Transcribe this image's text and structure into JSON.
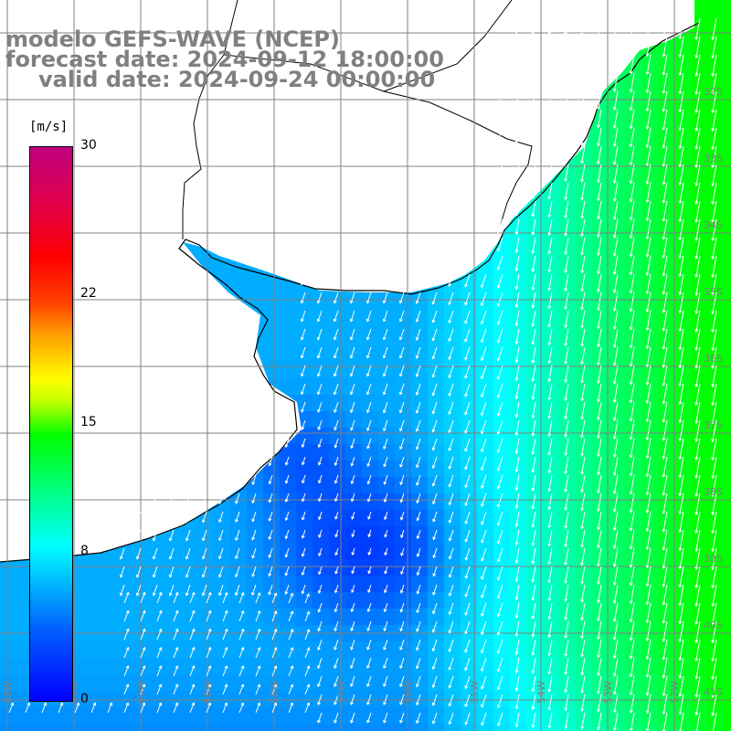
{
  "header": {
    "model": "modelo GEFS-WAVE (NCEP)",
    "forecast_date": "forecast date: 2024-09-12 18:00:00",
    "valid_date": "valid date: 2024-09-24 00:00:00"
  },
  "legend": {
    "units": "[m/s]",
    "ticks": [
      {
        "value": 30,
        "label": "30"
      },
      {
        "value": 22,
        "label": "22"
      },
      {
        "value": 15,
        "label": "15"
      },
      {
        "value": 8,
        "label": "8"
      },
      {
        "value": 0,
        "label": "0"
      }
    ],
    "min": 0,
    "max": 30
  },
  "map": {
    "lat_labels": [
      "32S",
      "33S",
      "34S",
      "35S",
      "36S",
      "37S",
      "38S",
      "39S",
      "40S",
      "41S",
      "42S"
    ],
    "lon_labels": [
      "62W",
      "61W",
      "60W",
      "59W",
      "58W",
      "57W",
      "56W",
      "55W",
      "54W",
      "53W",
      "52W"
    ],
    "land_color": "#ffffff",
    "grid_color": "#808080",
    "coast_color": "#000000",
    "arrow_color": "#ffffff",
    "ocean_low_color": "#0000ff",
    "ocean_high_color": "#00ff00"
  }
}
